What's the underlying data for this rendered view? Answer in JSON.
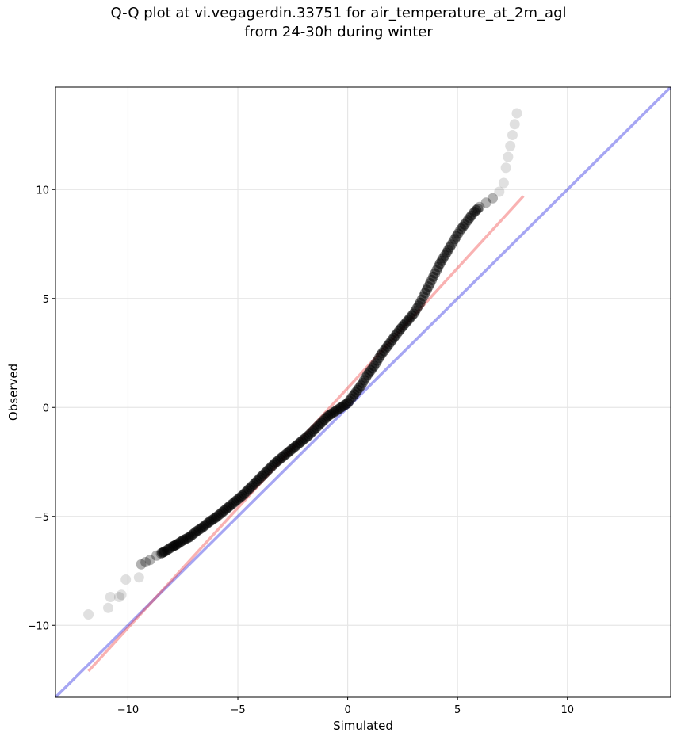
{
  "chart_data": {
    "type": "scatter",
    "title_line1": "Q-Q plot at vi.vegagerdin.33751 for air_temperature_at_2m_agl",
    "title_line2": "from 24-30h during winter",
    "xlabel": "Simulated",
    "ylabel": "Observed",
    "xlim": [
      -13.3,
      14.7
    ],
    "ylim": [
      -13.3,
      14.7
    ],
    "xticks": [
      -10,
      -5,
      0,
      5,
      10
    ],
    "yticks": [
      -10,
      -5,
      0,
      5,
      10
    ],
    "grid": true,
    "identity_line": {
      "color": "#0000dd",
      "x": [
        -13.3,
        14.7
      ],
      "y": [
        -13.3,
        14.7
      ]
    },
    "fit_line": {
      "color": "#ee2222",
      "x": [
        -11.8,
        8.0
      ],
      "y": [
        -12.1,
        9.7
      ]
    },
    "points": {
      "color": "#000000",
      "x": [
        -11.8,
        -10.9,
        -10.8,
        -10.4,
        -10.3,
        -10.1,
        -9.5,
        -9.4,
        -9.2,
        -9.0,
        -8.7,
        -8.5,
        -8.3,
        -8.0,
        -7.8,
        -7.5,
        -7.2,
        -6.9,
        -6.6,
        -6.3,
        -6.0,
        -5.7,
        -5.4,
        -5.1,
        -4.8,
        -4.5,
        -4.2,
        -3.9,
        -3.6,
        -3.3,
        -3.0,
        -2.7,
        -2.4,
        -2.1,
        -1.8,
        -1.5,
        -1.2,
        -0.9,
        -0.6,
        -0.3,
        0.0,
        0.3,
        0.6,
        0.9,
        1.2,
        1.5,
        1.8,
        2.1,
        2.4,
        2.7,
        3.0,
        3.3,
        3.6,
        3.9,
        4.2,
        4.5,
        4.8,
        5.1,
        5.4,
        5.7,
        6.0,
        6.3,
        6.6,
        6.9,
        7.1,
        7.2,
        7.3,
        7.4,
        7.5,
        7.6,
        7.7
      ],
      "y": [
        -9.5,
        -9.2,
        -8.7,
        -8.7,
        -8.6,
        -7.9,
        -7.8,
        -7.2,
        -7.1,
        -7.0,
        -6.8,
        -6.7,
        -6.6,
        -6.4,
        -6.3,
        -6.1,
        -5.95,
        -5.7,
        -5.5,
        -5.25,
        -5.05,
        -4.8,
        -4.55,
        -4.3,
        -4.05,
        -3.75,
        -3.45,
        -3.15,
        -2.85,
        -2.55,
        -2.3,
        -2.05,
        -1.8,
        -1.55,
        -1.3,
        -1.0,
        -0.7,
        -0.4,
        -0.2,
        0.0,
        0.2,
        0.6,
        1.0,
        1.5,
        1.9,
        2.4,
        2.8,
        3.2,
        3.6,
        3.95,
        4.3,
        4.8,
        5.4,
        6.0,
        6.6,
        7.1,
        7.6,
        8.1,
        8.5,
        8.9,
        9.2,
        9.4,
        9.6,
        9.9,
        10.3,
        11.0,
        11.5,
        12.0,
        12.5,
        13.0,
        13.5
      ]
    }
  }
}
